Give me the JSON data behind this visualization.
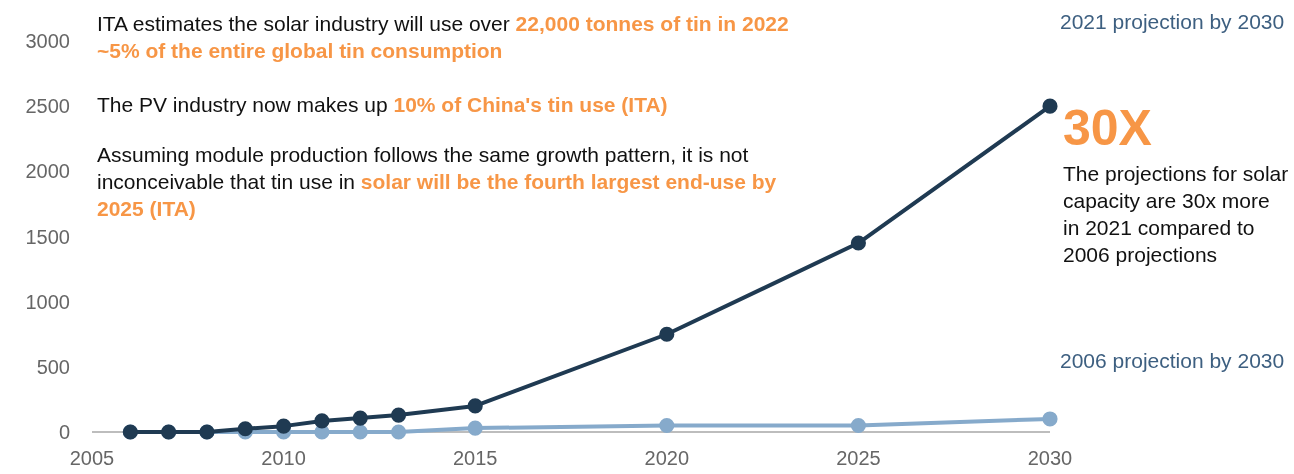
{
  "chart_data": {
    "type": "line",
    "x": [
      2006,
      2007,
      2008,
      2009,
      2010,
      2011,
      2012,
      2013,
      2015,
      2020,
      2025,
      2030
    ],
    "series": [
      {
        "name": "2021 projection by 2030",
        "color": "#1f3a52",
        "values": [
          0,
          0,
          0,
          25,
          45,
          85,
          107,
          130,
          200,
          750,
          1450,
          2500
        ]
      },
      {
        "name": "2006 projection by 2030",
        "color": "#86aacb",
        "values": [
          0,
          0,
          0,
          0,
          0,
          0,
          0,
          0,
          30,
          50,
          50,
          100
        ]
      }
    ],
    "xlim": [
      2005,
      2030
    ],
    "xticks": [
      2005,
      2010,
      2015,
      2020,
      2025,
      2030
    ],
    "ylim": [
      0,
      3000
    ],
    "yticks": [
      0,
      500,
      1000,
      1500,
      2000,
      2500,
      3000
    ],
    "grid": false,
    "legend": false,
    "marker": "circle",
    "line_style": "solid",
    "annotations": [
      "ITA estimates the solar industry will use over ",
      "22,000 tonnes of tin in 2022 ~5% of the entire global tin consumption",
      "The PV industry now makes up ",
      "10% of China's tin use (ITA)",
      "Assuming module production follows the same growth pattern, it is not inconceivable that tin use in ",
      "solar will be the fourth largest end-use by 2025 (ITA)",
      "30X",
      "The projections for solar capacity are 30x more in 2021 compared to 2006 projections"
    ]
  }
}
